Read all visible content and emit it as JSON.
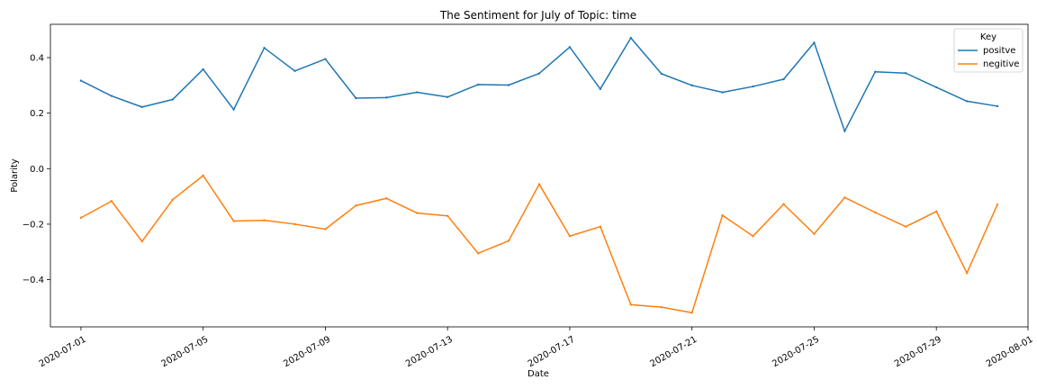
{
  "chart_data": {
    "type": "line",
    "title": "The Sentiment for July of Topic: time",
    "xlabel": "Date",
    "ylabel": "Polarity",
    "x": [
      "2020-07-01",
      "2020-07-02",
      "2020-07-03",
      "2020-07-04",
      "2020-07-05",
      "2020-07-06",
      "2020-07-07",
      "2020-07-08",
      "2020-07-09",
      "2020-07-10",
      "2020-07-11",
      "2020-07-12",
      "2020-07-13",
      "2020-07-14",
      "2020-07-15",
      "2020-07-16",
      "2020-07-17",
      "2020-07-18",
      "2020-07-19",
      "2020-07-20",
      "2020-07-21",
      "2020-07-22",
      "2020-07-23",
      "2020-07-24",
      "2020-07-25",
      "2020-07-26",
      "2020-07-27",
      "2020-07-28",
      "2020-07-29",
      "2020-07-30",
      "2020-07-31"
    ],
    "xlim": [
      "2020-06-30",
      "2020-08-01"
    ],
    "xticks": [
      "2020-07-01",
      "2020-07-05",
      "2020-07-09",
      "2020-07-13",
      "2020-07-17",
      "2020-07-21",
      "2020-07-25",
      "2020-07-29",
      "2020-08-01"
    ],
    "ylim": [
      -0.57,
      0.52
    ],
    "yticks": [
      -0.4,
      -0.2,
      0.0,
      0.2,
      0.4
    ],
    "ytick_labels": [
      "−0.4",
      "−0.2",
      "0.0",
      "0.2",
      "0.4"
    ],
    "grid": false,
    "legend": {
      "title": "Key",
      "placement": "top-right"
    },
    "series": [
      {
        "name": "positve",
        "color": "#1f77b4",
        "values": [
          0.317,
          0.262,
          0.222,
          0.249,
          0.358,
          0.213,
          0.435,
          0.352,
          0.395,
          0.254,
          0.256,
          0.275,
          0.258,
          0.303,
          0.301,
          0.343,
          0.438,
          0.287,
          0.471,
          0.342,
          0.3,
          0.275,
          0.296,
          0.322,
          0.454,
          0.135,
          0.349,
          0.344,
          0.293,
          0.243,
          0.225
        ]
      },
      {
        "name": "negitive",
        "color": "#ff7f0e",
        "values": [
          -0.177,
          -0.117,
          -0.262,
          -0.112,
          -0.025,
          -0.189,
          -0.186,
          -0.2,
          -0.218,
          -0.133,
          -0.107,
          -0.16,
          -0.17,
          -0.305,
          -0.26,
          -0.056,
          -0.243,
          -0.209,
          -0.49,
          -0.499,
          -0.519,
          -0.168,
          -0.243,
          -0.128,
          -0.235,
          -0.104,
          -0.158,
          -0.209,
          -0.154,
          -0.376,
          -0.129
        ]
      }
    ]
  }
}
